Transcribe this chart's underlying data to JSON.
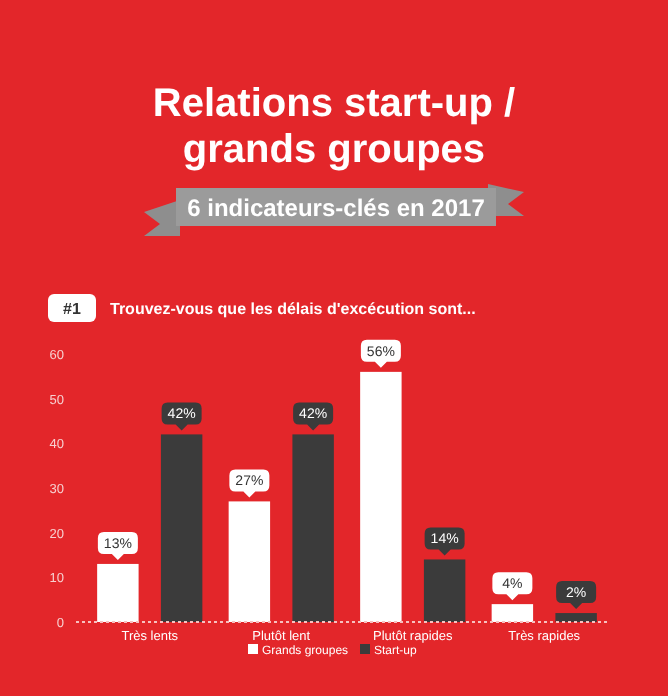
{
  "chart_data": {
    "type": "bar",
    "title": "Relations start-up / grands groupes",
    "subtitle": "6 indicateurs-clés en 2017",
    "annotations": [
      "#1",
      "Trouvez-vous que les délais d'excécution sont..."
    ],
    "categories": [
      "Très lents",
      "Plutôt lent",
      "Plutôt rapides",
      "Très rapides"
    ],
    "series": [
      {
        "name": "Grands groupes",
        "color": "#ffffff",
        "values": [
          13,
          27,
          56,
          4
        ],
        "value_labels": [
          "13%",
          "27%",
          "56%",
          "4%"
        ]
      },
      {
        "name": "Start-up",
        "color": "#3b3b3b",
        "values": [
          42,
          42,
          14,
          2
        ],
        "value_labels": [
          "42%",
          "42%",
          "14%",
          "2%"
        ]
      }
    ],
    "ylim": [
      0,
      60
    ],
    "yticks": [
      0,
      10,
      20,
      30,
      40,
      50,
      60
    ],
    "grid": false,
    "legend": "bottom"
  }
}
